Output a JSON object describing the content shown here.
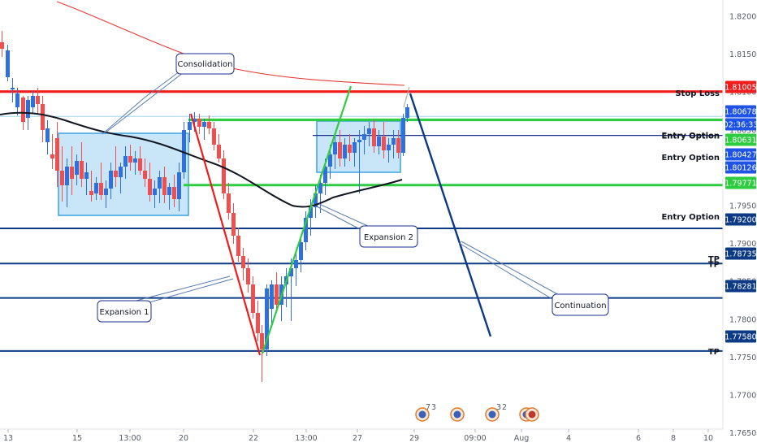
{
  "chart_data": {
    "type": "candlestick",
    "symbol_pair_note": "",
    "ylim": [
      1.7625,
      1.8225
    ],
    "price_ticks": [
      "1.82000",
      "1.81500",
      "1.81000",
      "1.80500",
      "1.80000",
      "1.79500",
      "1.79000",
      "1.78500",
      "1.78000",
      "1.77500",
      "1.77000",
      "1.76500"
    ],
    "time_ticks": [
      "13",
      "15",
      "13:00",
      "20",
      "22",
      "13:00",
      "27",
      "29",
      "09:00",
      "Aug",
      "4",
      "6",
      "8",
      "10"
    ],
    "horizontal_levels": [
      {
        "price": 1.81005,
        "label": "Stop Loss",
        "tag": "1.81005",
        "color": "#f21b1b",
        "tag_bg": "#f21b1b",
        "line": "red"
      },
      {
        "price": 1.80678,
        "label": "",
        "tag": "1.80678",
        "color": "#9fd7e6",
        "tag_bg": "#1e53e5",
        "line": "thin"
      },
      {
        "price": 1.80633,
        "label": "Entry Option",
        "tag": "02:36:33",
        "color": "#2ecc40",
        "tag_bg": "#1e53e5",
        "line": "green"
      },
      {
        "price": 1.80631,
        "label": "Entry Option",
        "tag": "1.80631",
        "color": "#2ecc40",
        "tag_bg": "#2ecc40",
        "line": "green"
      },
      {
        "price": 1.80427,
        "label": "Entry Option",
        "tag": "1.80427",
        "color": "#1b2e8c",
        "tag_bg": "#1e53e5",
        "line": "thin-navy"
      },
      {
        "price": 1.80126,
        "label": "",
        "tag": "1.80126",
        "color": "#1e53e5",
        "tag_bg": "#1e53e5",
        "line": "none"
      },
      {
        "price": 1.79771,
        "label": "Entry Option",
        "tag": "1.79771",
        "color": "#2ecc40",
        "tag_bg": "#2ecc40",
        "line": "green"
      },
      {
        "price": 1.792,
        "label": "TP",
        "tag": "1.79200",
        "color": "#0d3a84",
        "tag_bg": "#0d3a84",
        "line": "navy"
      },
      {
        "price": 1.78735,
        "label": "TP",
        "tag": "1.78735",
        "color": "#0d3a84",
        "tag_bg": "#0d3a84",
        "line": "navy"
      },
      {
        "price": 1.78281,
        "label": "",
        "tag": "1.78281",
        "color": "#0d3a84",
        "tag_bg": "#0d3a84",
        "line": "navy"
      },
      {
        "price": 1.7758,
        "label": "TP",
        "tag": "1.77580",
        "color": "#0d3a84",
        "tag_bg": "#0d3a84",
        "line": "navy"
      }
    ],
    "annotations": {
      "consolidation": "Consolidation",
      "expansion1": "Expansion 1",
      "expansion2": "Expansion 2",
      "continuation": "Continuation"
    },
    "event_badges": [
      "7",
      "3",
      "3",
      "2"
    ],
    "colors": {
      "up": "#2f6fde",
      "down": "#ef4f4f",
      "ma_fast": "#131722",
      "ma_slow": "#e53935",
      "box_fill": "#bfe0f7",
      "box_stroke": "#3aa3e0"
    }
  }
}
